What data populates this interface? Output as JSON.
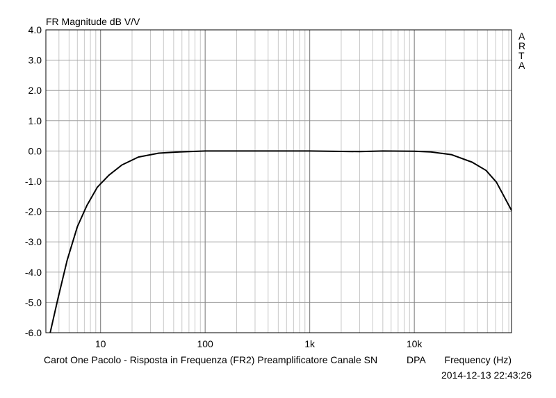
{
  "chart_data": {
    "type": "line",
    "title": "FR Magnitude dB V/V",
    "watermark": "ARTA",
    "caption": "Carot One Pacolo - Risposta in Frequenza (FR2) Preamplificatore Canale SN",
    "channel": "DPA",
    "xlabel": "Frequency (Hz)",
    "timestamp": "2014-12-13  22:43:26",
    "xscale": "log",
    "grid": true,
    "xlim": [
      3,
      85000
    ],
    "ylim": [
      -6,
      4
    ],
    "xticks": [
      10,
      100,
      {
        "value": 1000,
        "label": "1k"
      },
      {
        "value": 10000,
        "label": "10k"
      }
    ],
    "yticks": [
      {
        "value": 4,
        "label": "4.0"
      },
      {
        "value": 3,
        "label": "3.0"
      },
      {
        "value": 2,
        "label": "2.0"
      },
      {
        "value": 1,
        "label": "1.0"
      },
      {
        "value": 0,
        "label": "0.0"
      },
      {
        "value": -1,
        "label": "-1.0"
      },
      {
        "value": -2,
        "label": "-2.0"
      },
      {
        "value": -3,
        "label": "-3.0"
      },
      {
        "value": -4,
        "label": "-4.0"
      },
      {
        "value": -5,
        "label": "-5.0"
      },
      {
        "value": -6,
        "label": "-6.0"
      }
    ],
    "series": [
      {
        "color": "#000000",
        "x": [
          3.3,
          3.9,
          4.8,
          6.0,
          7.4,
          9.3,
          12,
          16,
          23,
          36,
          57,
          100,
          300,
          1000,
          3000,
          5000,
          10000,
          14400,
          22600,
          35700,
          48500,
          61000,
          85000
        ],
        "values": [
          -6.0,
          -4.9,
          -3.6,
          -2.5,
          -1.8,
          -1.2,
          -0.8,
          -0.46,
          -0.2,
          -0.07,
          -0.03,
          0,
          0,
          0,
          -0.02,
          0,
          -0.01,
          -0.03,
          -0.12,
          -0.37,
          -0.64,
          -1.03,
          -1.96
        ]
      }
    ]
  }
}
